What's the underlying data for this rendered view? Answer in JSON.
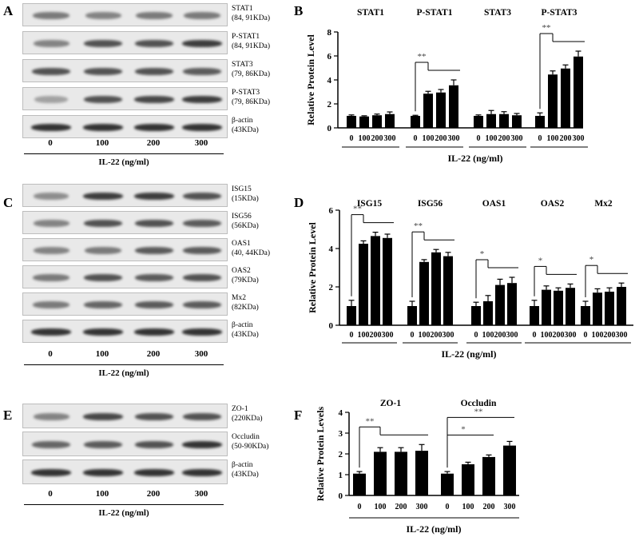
{
  "panels": {
    "A": {
      "letter": "A",
      "blots": [
        {
          "name": "STAT1",
          "mw": "(84, 91KDa)",
          "levels": [
            0.55,
            0.5,
            0.55,
            0.55
          ]
        },
        {
          "name": "P-STAT1",
          "mw": "(84, 91KDa)",
          "levels": [
            0.5,
            0.75,
            0.75,
            0.85
          ]
        },
        {
          "name": "STAT3",
          "mw": "(79, 86KDa)",
          "levels": [
            0.75,
            0.75,
            0.75,
            0.7
          ]
        },
        {
          "name": "P-STAT3",
          "mw": "(79, 86KDa)",
          "levels": [
            0.35,
            0.75,
            0.8,
            0.85
          ]
        },
        {
          "name": "β-actin",
          "mw": "(43KDa)",
          "levels": [
            0.9,
            0.9,
            0.9,
            0.9
          ]
        }
      ],
      "lanes": [
        "0",
        "100",
        "200",
        "300"
      ],
      "conc": "IL-22 (ng/ml)"
    },
    "C": {
      "letter": "C",
      "blots": [
        {
          "name": "ISG15",
          "mw": "(15KDa)",
          "levels": [
            0.45,
            0.85,
            0.85,
            0.75
          ]
        },
        {
          "name": "ISG56",
          "mw": "(56KDa)",
          "levels": [
            0.5,
            0.75,
            0.75,
            0.7
          ]
        },
        {
          "name": "OAS1",
          "mw": "(40, 44KDa)",
          "levels": [
            0.5,
            0.55,
            0.7,
            0.7
          ]
        },
        {
          "name": "OAS2",
          "mw": "(79KDa)",
          "levels": [
            0.55,
            0.75,
            0.7,
            0.75
          ]
        },
        {
          "name": "Mx2",
          "mw": "(82KDa)",
          "levels": [
            0.55,
            0.65,
            0.7,
            0.7
          ]
        },
        {
          "name": "β-actin",
          "mw": "(43KDa)",
          "levels": [
            0.9,
            0.9,
            0.9,
            0.9
          ]
        }
      ],
      "lanes": [
        "0",
        "100",
        "200",
        "300"
      ],
      "conc": "IL-22 (ng/ml)"
    },
    "E": {
      "letter": "E",
      "blots": [
        {
          "name": "ZO-1",
          "mw": "(220KDa)",
          "levels": [
            0.5,
            0.8,
            0.75,
            0.75
          ]
        },
        {
          "name": "Occludin",
          "mw": "(50-90KDa)",
          "levels": [
            0.65,
            0.7,
            0.75,
            0.9
          ]
        },
        {
          "name": "β-actin",
          "mw": "(43KDa)",
          "levels": [
            0.9,
            0.9,
            0.9,
            0.9
          ]
        }
      ],
      "lanes": [
        "0",
        "100",
        "200",
        "300"
      ],
      "conc": "IL-22 (ng/ml)"
    }
  },
  "chart_data": [
    {
      "type": "bar",
      "panel": "B",
      "ylabel": "Relative Protein Level",
      "xlabel": "IL-22 (ng/ml)",
      "ylim": [
        0,
        8
      ],
      "yticks": [
        0,
        2,
        4,
        6,
        8
      ],
      "categories": [
        "0",
        "100",
        "200",
        "300"
      ],
      "groups": [
        {
          "name": "STAT1",
          "values": [
            1.0,
            0.95,
            1.05,
            1.15
          ],
          "errors": [
            0.08,
            0.06,
            0.1,
            0.18
          ]
        },
        {
          "name": "P-STAT1",
          "values": [
            1.0,
            2.85,
            2.95,
            3.55
          ],
          "errors": [
            0.05,
            0.2,
            0.25,
            0.45
          ]
        },
        {
          "name": "STAT3",
          "values": [
            1.0,
            1.15,
            1.15,
            1.05
          ],
          "errors": [
            0.08,
            0.3,
            0.2,
            0.15
          ]
        },
        {
          "name": "P-STAT3",
          "values": [
            1.0,
            4.45,
            4.95,
            5.95
          ],
          "errors": [
            0.25,
            0.3,
            0.3,
            0.45
          ]
        }
      ],
      "significance": [
        {
          "group": 1,
          "label": "**"
        },
        {
          "group": 3,
          "label": "**"
        }
      ]
    },
    {
      "type": "bar",
      "panel": "D",
      "ylabel": "Relative Protein Level",
      "xlabel": "IL-22 (ng/ml)",
      "ylim": [
        0,
        6
      ],
      "yticks": [
        0,
        2,
        4,
        6
      ],
      "categories": [
        "0",
        "100",
        "200",
        "300"
      ],
      "groups": [
        {
          "name": "ISG15",
          "values": [
            1.0,
            4.25,
            4.65,
            4.55
          ],
          "errors": [
            0.3,
            0.15,
            0.2,
            0.2
          ]
        },
        {
          "name": "ISG56",
          "values": [
            1.0,
            3.3,
            3.8,
            3.6
          ],
          "errors": [
            0.25,
            0.12,
            0.15,
            0.2
          ]
        },
        {
          "name": "OAS1",
          "values": [
            1.0,
            1.25,
            2.1,
            2.2
          ],
          "errors": [
            0.2,
            0.3,
            0.3,
            0.3
          ]
        },
        {
          "name": "OAS2",
          "values": [
            1.0,
            1.85,
            1.8,
            1.95
          ],
          "errors": [
            0.3,
            0.2,
            0.15,
            0.2
          ]
        },
        {
          "name": "Mx2",
          "values": [
            1.0,
            1.7,
            1.75,
            2.0
          ],
          "errors": [
            0.25,
            0.2,
            0.2,
            0.2
          ]
        }
      ],
      "significance": [
        {
          "group": 0,
          "label": "**"
        },
        {
          "group": 1,
          "label": "**"
        },
        {
          "group": 2,
          "label": "*"
        },
        {
          "group": 3,
          "label": "*"
        },
        {
          "group": 4,
          "label": "*"
        }
      ]
    },
    {
      "type": "bar",
      "panel": "F",
      "ylabel": "Relative Protein Levels",
      "xlabel": "IL-22 (ng/ml)",
      "ylim": [
        0,
        4
      ],
      "yticks": [
        0,
        1,
        2,
        3,
        4
      ],
      "categories": [
        "0",
        "100",
        "200",
        "300"
      ],
      "groups": [
        {
          "name": "ZO-1",
          "values": [
            1.05,
            2.1,
            2.1,
            2.15
          ],
          "errors": [
            0.1,
            0.2,
            0.2,
            0.3
          ]
        },
        {
          "name": "Occludin",
          "values": [
            1.05,
            1.5,
            1.85,
            2.4
          ],
          "errors": [
            0.1,
            0.1,
            0.1,
            0.2
          ]
        }
      ],
      "significance": [
        {
          "group": 0,
          "label": "**",
          "kind": "single"
        },
        {
          "group": 1,
          "label": "**",
          "kind": "stacked",
          "top": "**",
          "bottom": "*"
        }
      ]
    }
  ]
}
